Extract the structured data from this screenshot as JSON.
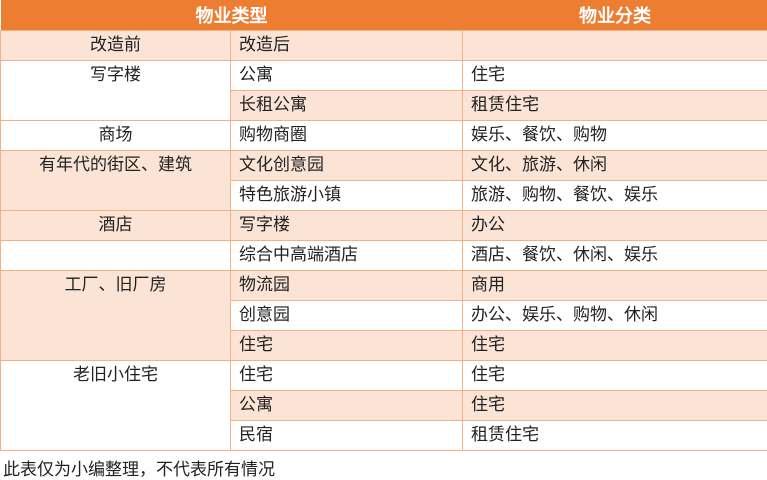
{
  "header": {
    "type_label": "物业类型",
    "category_label": "物业分类"
  },
  "columns": {
    "before": "改造前",
    "after": "改造后",
    "category": ""
  },
  "groups": [
    {
      "before": "写字楼",
      "rows": [
        {
          "after": "公寓",
          "category": "住宅"
        },
        {
          "after": "长租公寓",
          "category": "租赁住宅"
        }
      ]
    },
    {
      "before": "商场",
      "rows": [
        {
          "after": "购物商圈",
          "category": "娱乐、餐饮、购物"
        }
      ]
    },
    {
      "before": "有年代的街区、建筑",
      "rows": [
        {
          "after": "文化创意园",
          "category": "文化、旅游、休闲"
        },
        {
          "after": "特色旅游小镇",
          "category": "旅游、购物、餐饮、娱乐"
        }
      ]
    },
    {
      "before": "酒店",
      "rows": [
        {
          "after": "写字楼",
          "category": "办公"
        }
      ]
    },
    {
      "before": "",
      "rows": [
        {
          "after": "综合中高端酒店",
          "category": "酒店、餐饮、休闲、娱乐"
        }
      ]
    },
    {
      "before": "工厂、旧厂房",
      "rows": [
        {
          "after": "物流园",
          "category": "商用"
        },
        {
          "after": "创意园",
          "category": "办公、娱乐、购物、休闲"
        },
        {
          "after": "住宅",
          "category": "住宅"
        }
      ]
    },
    {
      "before": "老旧小住宅",
      "rows": [
        {
          "after": "住宅",
          "category": "住宅"
        },
        {
          "after": "公寓",
          "category": "住宅"
        },
        {
          "after": "民宿",
          "category": "租赁住宅"
        }
      ]
    }
  ],
  "caption": "此表仅为小编整理，不代表所有情况",
  "colors": {
    "header": "#ED7D31",
    "band": "#FBE4D5",
    "border": "#F4B183"
  }
}
